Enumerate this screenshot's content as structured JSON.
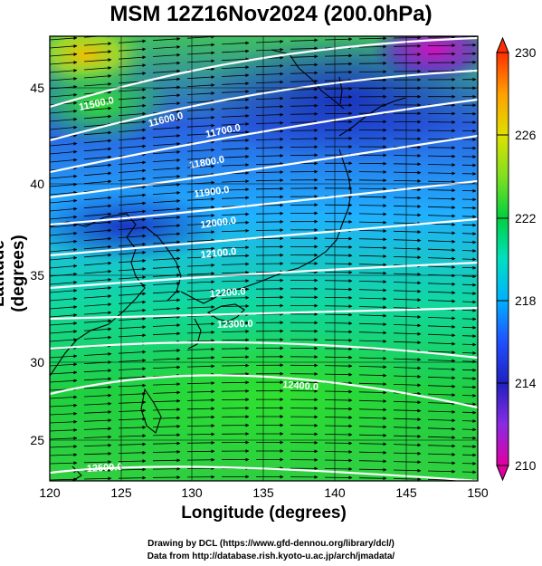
{
  "title": "MSM 12Z16Nov2024 (200.0hPa)",
  "xlabel": "Longitude (degrees)",
  "ylabel": "Latitude  (degrees)",
  "credits": [
    "Drawing by DCL (https://www.gfd-dennou.org/library/dcl/)",
    "Data from http://database.rish.kyoto-u.ac.jp/arch/jmadata/"
  ],
  "map": {
    "lon_range": [
      120,
      150
    ],
    "lat_range": [
      22.4,
      47.6
    ],
    "lon_ticks": [
      "120",
      "125",
      "130",
      "135",
      "140",
      "145",
      "150"
    ],
    "lat_ticks": [
      "25",
      "30",
      "35",
      "40",
      "45"
    ],
    "contour_labels": [
      "11500.0",
      "11600.0",
      "11700.0",
      "11800.0",
      "11900.0",
      "12000.0",
      "12100.0",
      "12200.0",
      "12300.0",
      "12400.0",
      "12500.0"
    ],
    "colorbar": {
      "ticks": [
        "230",
        "226",
        "222",
        "218",
        "214",
        "210"
      ],
      "min": 210,
      "max": 230,
      "colors": [
        "#e000a0",
        "#8a2be2",
        "#2020c0",
        "#2050ff",
        "#00b0ff",
        "#00e0c0",
        "#00d040",
        "#80e020",
        "#e0e000",
        "#ffa000",
        "#ff3000"
      ]
    }
  }
}
